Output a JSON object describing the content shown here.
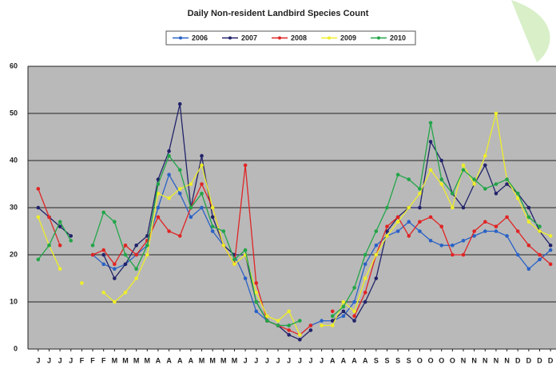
{
  "chart_data": {
    "type": "line",
    "title": "Daily Non-resident Landbird Species Count",
    "categories": [
      "J",
      "J",
      "J",
      "J",
      "F",
      "F",
      "F",
      "M",
      "M",
      "M",
      "M",
      "A",
      "A",
      "A",
      "A",
      "M",
      "M",
      "M",
      "M",
      "J",
      "J",
      "J",
      "J",
      "J",
      "J",
      "J",
      "J",
      "A",
      "A",
      "A",
      "A",
      "S",
      "S",
      "S",
      "S",
      "O",
      "O",
      "O",
      "O",
      "N",
      "N",
      "N",
      "N",
      "N",
      "D",
      "D",
      "D",
      "D"
    ],
    "series": [
      {
        "name": "2006",
        "color": "#2a62c6",
        "values": [
          null,
          22,
          null,
          null,
          null,
          20,
          18,
          17,
          18,
          20,
          22,
          30,
          37,
          33,
          28,
          30,
          25,
          22,
          20,
          15,
          8,
          6,
          5,
          5,
          null,
          5,
          6,
          6,
          7,
          10,
          18,
          22,
          24,
          25,
          27,
          25,
          23,
          22,
          22,
          23,
          24,
          25,
          25,
          24,
          20,
          17,
          19,
          21
        ]
      },
      {
        "name": "2007",
        "color": "#22236a",
        "values": [
          30,
          28,
          26,
          24,
          null,
          null,
          20,
          15,
          18,
          22,
          24,
          36,
          42,
          52,
          30,
          41,
          28,
          22,
          20,
          20,
          10,
          6,
          5,
          3,
          2,
          4,
          null,
          6,
          8,
          6,
          10,
          15,
          25,
          28,
          30,
          30,
          44,
          40,
          33,
          30,
          35,
          39,
          33,
          35,
          33,
          30,
          25,
          22
        ]
      },
      {
        "name": "2008",
        "color": "#e02424",
        "values": [
          34,
          28,
          22,
          null,
          null,
          20,
          21,
          18,
          22,
          20,
          23,
          28,
          25,
          24,
          30,
          35,
          30,
          22,
          18,
          39,
          14,
          6,
          5,
          4,
          3,
          5,
          null,
          8,
          null,
          7,
          12,
          20,
          26,
          28,
          24,
          27,
          28,
          26,
          20,
          20,
          25,
          27,
          26,
          28,
          25,
          22,
          20,
          18
        ]
      },
      {
        "name": "2009",
        "color": "#eeee2a",
        "values": [
          28,
          22,
          17,
          null,
          14,
          null,
          12,
          10,
          12,
          15,
          20,
          33,
          32,
          34,
          35,
          39,
          30,
          22,
          18,
          20,
          12,
          7,
          6,
          8,
          3,
          null,
          5,
          5,
          10,
          8,
          15,
          20,
          24,
          27,
          30,
          33,
          38,
          35,
          30,
          39,
          35,
          41,
          50,
          36,
          32,
          27,
          25,
          24
        ]
      },
      {
        "name": "2010",
        "color": "#22a548",
        "values": [
          19,
          22,
          27,
          23,
          null,
          22,
          29,
          27,
          20,
          17,
          22,
          35,
          41,
          38,
          30,
          33,
          26,
          25,
          19,
          21,
          10,
          6,
          5,
          5,
          6,
          null,
          null,
          7,
          9,
          13,
          20,
          25,
          30,
          37,
          36,
          34,
          48,
          36,
          33,
          38,
          36,
          34,
          35,
          36,
          33,
          28,
          26,
          null
        ]
      }
    ],
    "ylim": [
      0,
      60
    ],
    "yticks": [
      0,
      10,
      20,
      30,
      40,
      50,
      60
    ],
    "grid": true
  }
}
